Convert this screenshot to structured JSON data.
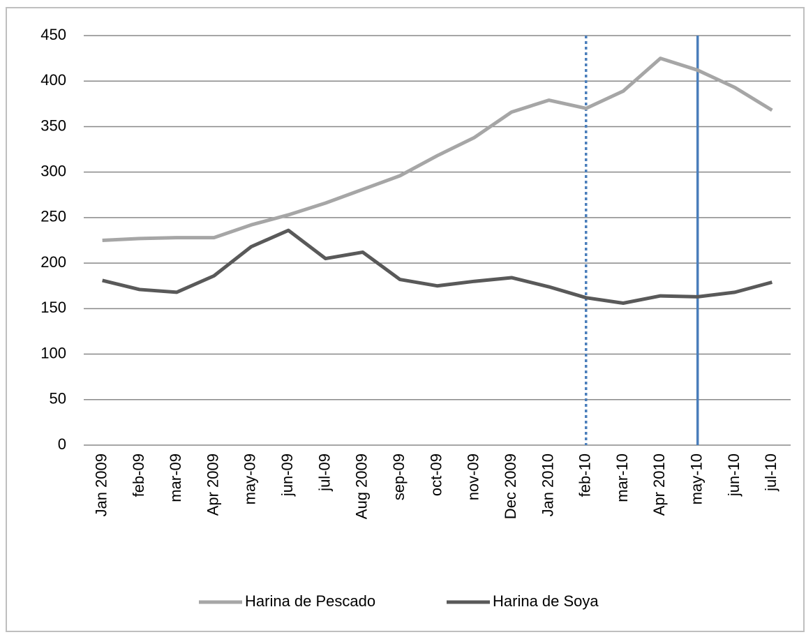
{
  "chart_data": {
    "type": "line",
    "categories": [
      "Jan 2009",
      "feb-09",
      "mar-09",
      "Apr 2009",
      "may-09",
      "jun-09",
      "jul-09",
      "Aug 2009",
      "sep-09",
      "oct-09",
      "nov-09",
      "Dec 2009",
      "Jan 2010",
      "feb-10",
      "mar-10",
      "Apr 2010",
      "may-10",
      "jun-10",
      "jul-10"
    ],
    "series": [
      {
        "name": "Harina de Pescado",
        "color": "#a6a6a6",
        "values": [
          225,
          227,
          228,
          228,
          242,
          253,
          266,
          281,
          296,
          318,
          338,
          366,
          379,
          370,
          389,
          425,
          412,
          393,
          368
        ]
      },
      {
        "name": "Harina de Soya",
        "color": "#595959",
        "values": [
          181,
          171,
          168,
          186,
          218,
          236,
          205,
          212,
          182,
          175,
          180,
          184,
          174,
          162,
          156,
          164,
          163,
          168,
          179
        ]
      }
    ],
    "ylim": [
      0,
      450
    ],
    "yticks": [
      0,
      50,
      100,
      150,
      200,
      250,
      300,
      350,
      400,
      450
    ],
    "grid": true,
    "legend": "bottom",
    "vertical_lines": [
      {
        "at": "feb-10",
        "style": "dotted",
        "color": "#4a7ebb"
      },
      {
        "at": "may-10",
        "style": "solid",
        "color": "#4a7ebb"
      }
    ]
  }
}
